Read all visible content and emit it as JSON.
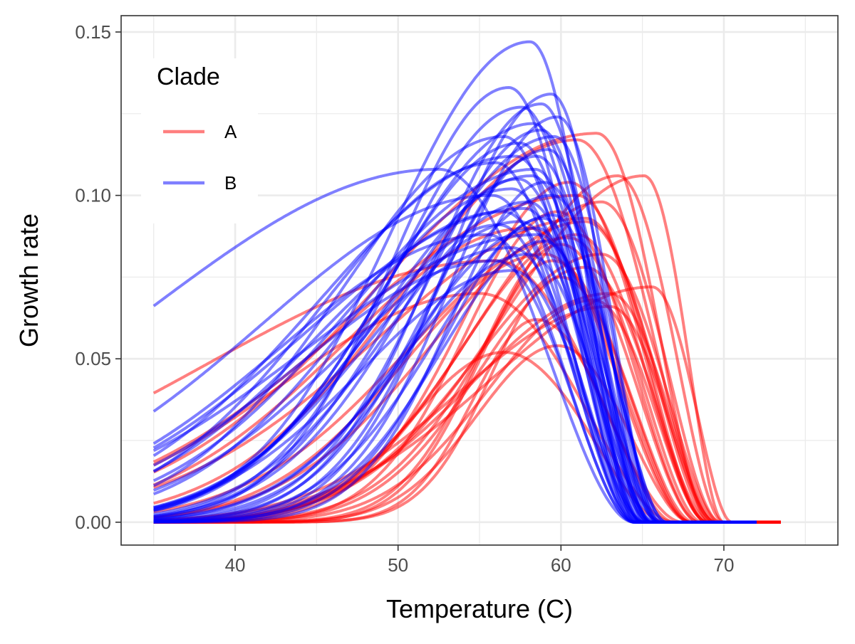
{
  "chart_data": {
    "type": "line",
    "title": "",
    "xlabel": "Temperature (C)",
    "ylabel": "Growth rate",
    "xlim": [
      33,
      77
    ],
    "ylim": [
      -0.007,
      0.155
    ],
    "x_major_ticks": [
      40,
      50,
      60,
      70
    ],
    "x_tick_labels": [
      "40",
      "50",
      "60",
      "70"
    ],
    "x_minor_ticks": [
      35,
      45,
      55,
      65,
      75
    ],
    "y_major_ticks": [
      0,
      0.05,
      0.1,
      0.15
    ],
    "y_tick_labels": [
      "0.00",
      "0.05",
      "0.10",
      "0.15"
    ],
    "y_minor_ticks": [
      0.025,
      0.075,
      0.125
    ],
    "grid": true,
    "legend": {
      "title": "Clade",
      "position": "top-left",
      "entries": [
        {
          "label": "A",
          "color": "#ff0000"
        },
        {
          "label": "B",
          "color": "#0000ff"
        }
      ]
    },
    "curve_model": "peaked thermal performance curve: y = ymax * exp(-((x-topt)/w)^2) for x<=topt, ymax * (1-((x-topt)/(tmax-topt))^2)^2 for topt<x<tmax, 0 beyond; evaluated from x = 35 to x_end",
    "series": [
      {
        "group": "A",
        "color": "#ff0000",
        "curves": [
          {
            "topt": 62.2,
            "ymax": 0.119,
            "w": 19,
            "tmax": 69.2,
            "x_end": 73.5
          },
          {
            "topt": 65.1,
            "ymax": 0.106,
            "w": 12,
            "tmax": 70.0,
            "x_end": 73.5
          },
          {
            "topt": 65.6,
            "ymax": 0.072,
            "w": 14,
            "tmax": 70.5,
            "x_end": 73.5
          },
          {
            "topt": 63.5,
            "ymax": 0.106,
            "w": 10,
            "tmax": 70.0,
            "x_end": 73.5
          },
          {
            "topt": 61.0,
            "ymax": 0.117,
            "w": 15,
            "tmax": 69.5,
            "x_end": 73.5
          },
          {
            "topt": 62.5,
            "ymax": 0.098,
            "w": 11,
            "tmax": 69.8,
            "x_end": 73.5
          },
          {
            "topt": 60.5,
            "ymax": 0.104,
            "w": 9,
            "tmax": 69.0,
            "x_end": 73.5
          },
          {
            "topt": 61.5,
            "ymax": 0.092,
            "w": 13,
            "tmax": 69.5,
            "x_end": 73.5
          },
          {
            "topt": 59.8,
            "ymax": 0.095,
            "w": 8,
            "tmax": 68.5,
            "x_end": 73.5
          },
          {
            "topt": 61.0,
            "ymax": 0.088,
            "w": 10,
            "tmax": 69.0,
            "x_end": 73.5
          },
          {
            "topt": 60.0,
            "ymax": 0.085,
            "w": 7,
            "tmax": 68.5,
            "x_end": 73.5
          },
          {
            "topt": 62.5,
            "ymax": 0.082,
            "w": 11,
            "tmax": 69.8,
            "x_end": 73.5
          },
          {
            "topt": 59.5,
            "ymax": 0.08,
            "w": 6.5,
            "tmax": 68.2,
            "x_end": 73.5
          },
          {
            "topt": 61.5,
            "ymax": 0.078,
            "w": 9,
            "tmax": 69.2,
            "x_end": 73.5
          },
          {
            "topt": 63.0,
            "ymax": 0.07,
            "w": 12,
            "tmax": 69.6,
            "x_end": 73.5
          },
          {
            "topt": 60.0,
            "ymax": 0.075,
            "w": 6,
            "tmax": 68.0,
            "x_end": 73.5
          },
          {
            "topt": 62.0,
            "ymax": 0.068,
            "w": 9,
            "tmax": 69.0,
            "x_end": 73.5
          },
          {
            "topt": 58.5,
            "ymax": 0.062,
            "w": 5.5,
            "tmax": 67.0,
            "x_end": 73.5
          },
          {
            "topt": 63.0,
            "ymax": 0.066,
            "w": 13,
            "tmax": 69.5,
            "x_end": 73.5
          },
          {
            "topt": 59.8,
            "ymax": 0.054,
            "w": 7,
            "tmax": 68.0,
            "x_end": 73.5
          },
          {
            "topt": 56.5,
            "ymax": 0.052,
            "w": 8,
            "tmax": 66.5,
            "x_end": 73.5
          },
          {
            "topt": 55.0,
            "ymax": 0.07,
            "w": 17,
            "tmax": 67.0,
            "x_end": 73.5
          },
          {
            "topt": 61.0,
            "ymax": 0.1,
            "w": 20,
            "tmax": 69.0,
            "x_end": 73.5
          },
          {
            "topt": 58.0,
            "ymax": 0.09,
            "w": 16,
            "tmax": 68.0,
            "x_end": 73.5
          },
          {
            "topt": 56.0,
            "ymax": 0.08,
            "w": 25,
            "tmax": 67.5,
            "x_end": 73.5
          },
          {
            "topt": 60.5,
            "ymax": 0.087,
            "w": 14,
            "tmax": 68.7,
            "x_end": 73.5
          },
          {
            "topt": 61.5,
            "ymax": 0.093,
            "w": 18,
            "tmax": 69.3,
            "x_end": 73.5
          },
          {
            "topt": 59.0,
            "ymax": 0.082,
            "w": 12,
            "tmax": 68.0,
            "x_end": 73.5
          }
        ]
      },
      {
        "group": "B",
        "color": "#0000ff",
        "curves": [
          {
            "topt": 58.1,
            "ymax": 0.147,
            "w": 12,
            "tmax": 64.6,
            "x_end": 72.0
          },
          {
            "topt": 56.8,
            "ymax": 0.133,
            "w": 10,
            "tmax": 64.5,
            "x_end": 72.0
          },
          {
            "topt": 59.4,
            "ymax": 0.131,
            "w": 9,
            "tmax": 65.5,
            "x_end": 72.0
          },
          {
            "topt": 57.6,
            "ymax": 0.127,
            "w": 11,
            "tmax": 65.0,
            "x_end": 72.0
          },
          {
            "topt": 59.8,
            "ymax": 0.124,
            "w": 9,
            "tmax": 66.0,
            "x_end": 72.0
          },
          {
            "topt": 58.8,
            "ymax": 0.12,
            "w": 10,
            "tmax": 65.5,
            "x_end": 72.0
          },
          {
            "topt": 52.5,
            "ymax": 0.108,
            "w": 25,
            "tmax": 64.5,
            "x_end": 72.0
          },
          {
            "topt": 57.5,
            "ymax": 0.116,
            "w": 12,
            "tmax": 65.0,
            "x_end": 72.0
          },
          {
            "topt": 58.5,
            "ymax": 0.112,
            "w": 9,
            "tmax": 66.0,
            "x_end": 72.0
          },
          {
            "topt": 56.0,
            "ymax": 0.11,
            "w": 15,
            "tmax": 64.5,
            "x_end": 72.0
          },
          {
            "topt": 59.0,
            "ymax": 0.104,
            "w": 8,
            "tmax": 66.5,
            "x_end": 72.0
          },
          {
            "topt": 57.0,
            "ymax": 0.102,
            "w": 14,
            "tmax": 65.0,
            "x_end": 72.0
          },
          {
            "topt": 58.0,
            "ymax": 0.098,
            "w": 12,
            "tmax": 65.5,
            "x_end": 72.0
          },
          {
            "topt": 56.5,
            "ymax": 0.095,
            "w": 16,
            "tmax": 64.8,
            "x_end": 72.0
          },
          {
            "topt": 59.5,
            "ymax": 0.094,
            "w": 10,
            "tmax": 66.5,
            "x_end": 72.0
          },
          {
            "topt": 57.5,
            "ymax": 0.092,
            "w": 13,
            "tmax": 65.5,
            "x_end": 72.0
          },
          {
            "topt": 58.5,
            "ymax": 0.09,
            "w": 11,
            "tmax": 66.0,
            "x_end": 72.0
          },
          {
            "topt": 55.5,
            "ymax": 0.088,
            "w": 18,
            "tmax": 64.5,
            "x_end": 72.0
          },
          {
            "topt": 59.0,
            "ymax": 0.086,
            "w": 9,
            "tmax": 66.2,
            "x_end": 72.0
          },
          {
            "topt": 57.0,
            "ymax": 0.084,
            "w": 15,
            "tmax": 65.0,
            "x_end": 72.0
          },
          {
            "topt": 58.0,
            "ymax": 0.082,
            "w": 11,
            "tmax": 65.8,
            "x_end": 72.0
          },
          {
            "topt": 56.0,
            "ymax": 0.08,
            "w": 17,
            "tmax": 64.5,
            "x_end": 72.0
          },
          {
            "topt": 57.0,
            "ymax": 0.077,
            "w": 13,
            "tmax": 65.2,
            "x_end": 72.0
          },
          {
            "topt": 59.5,
            "ymax": 0.1,
            "w": 11,
            "tmax": 66.3,
            "x_end": 72.0
          },
          {
            "topt": 58.2,
            "ymax": 0.106,
            "w": 13,
            "tmax": 65.6,
            "x_end": 72.0
          },
          {
            "topt": 56.5,
            "ymax": 0.118,
            "w": 14,
            "tmax": 64.8,
            "x_end": 72.0
          },
          {
            "topt": 59.2,
            "ymax": 0.114,
            "w": 10,
            "tmax": 66.0,
            "x_end": 72.0
          },
          {
            "topt": 58.8,
            "ymax": 0.128,
            "w": 9.5,
            "tmax": 65.2,
            "x_end": 72.0
          },
          {
            "topt": 57.8,
            "ymax": 0.096,
            "w": 19,
            "tmax": 65.0,
            "x_end": 72.0
          },
          {
            "topt": 58.4,
            "ymax": 0.108,
            "w": 16,
            "tmax": 65.4,
            "x_end": 72.0
          },
          {
            "topt": 55.8,
            "ymax": 0.1,
            "w": 20,
            "tmax": 64.6,
            "x_end": 72.0
          },
          {
            "topt": 57.2,
            "ymax": 0.112,
            "w": 17,
            "tmax": 65.1,
            "x_end": 72.0
          },
          {
            "topt": 58.6,
            "ymax": 0.088,
            "w": 20,
            "tmax": 65.7,
            "x_end": 72.0
          },
          {
            "topt": 59.6,
            "ymax": 0.118,
            "w": 12,
            "tmax": 66.1,
            "x_end": 72.0
          },
          {
            "topt": 57.4,
            "ymax": 0.105,
            "w": 11,
            "tmax": 65.3,
            "x_end": 72.0
          },
          {
            "topt": 58.9,
            "ymax": 0.093,
            "w": 8.5,
            "tmax": 66.0,
            "x_end": 72.0
          },
          {
            "topt": 56.2,
            "ymax": 0.091,
            "w": 12,
            "tmax": 64.7,
            "x_end": 72.0
          },
          {
            "topt": 58.3,
            "ymax": 0.122,
            "w": 12.5,
            "tmax": 65.5,
            "x_end": 72.0
          }
        ]
      }
    ]
  }
}
